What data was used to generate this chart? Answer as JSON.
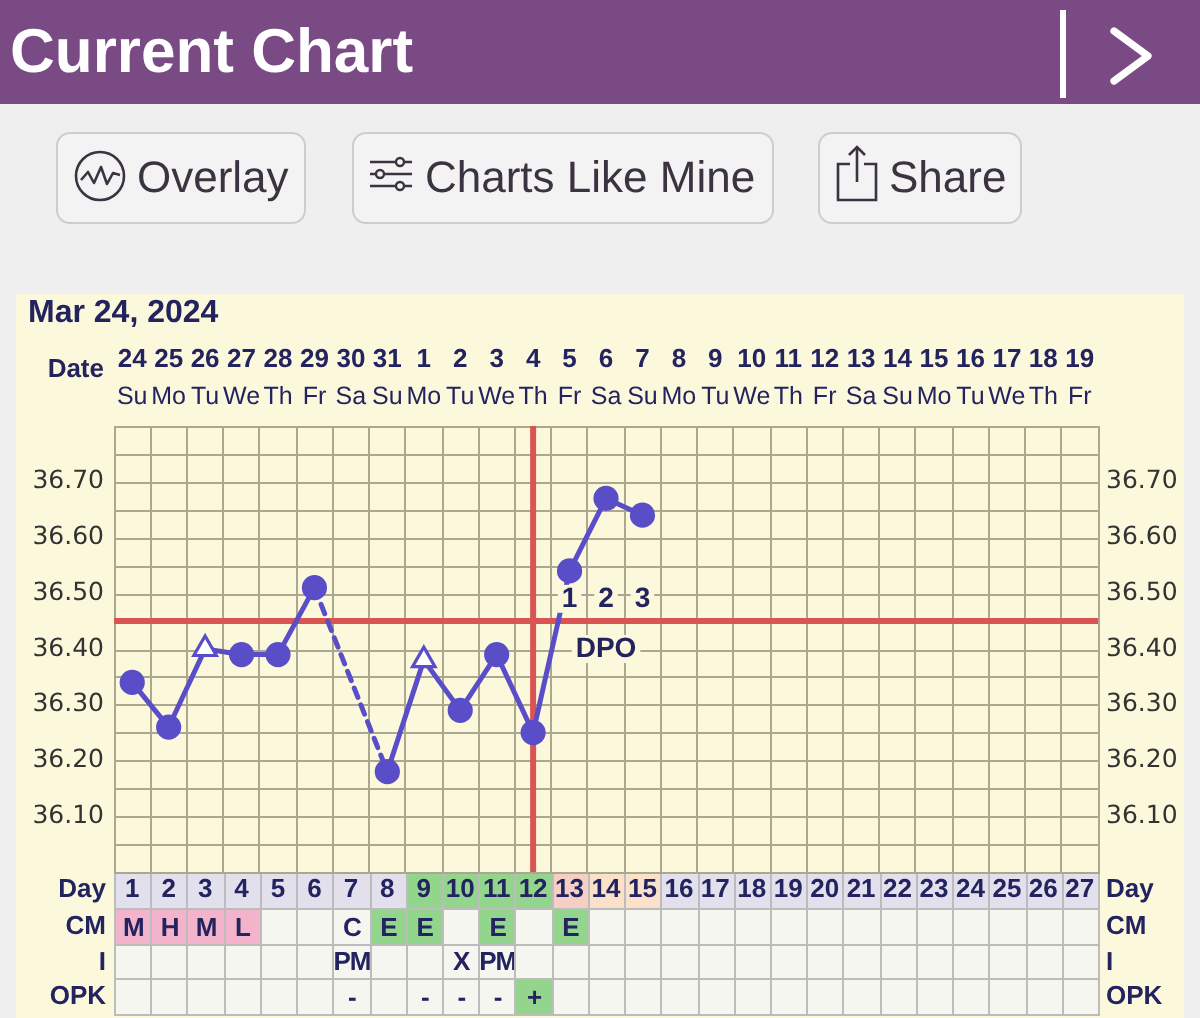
{
  "chart_data": [
    {
      "type": "line",
      "title": "Current Chart",
      "subtitle": "Mar 24, 2024",
      "xlabel": "Date",
      "x2label": "Day",
      "categories": [
        "24\nSu",
        "25\nMo",
        "26\nTu",
        "27\nWe",
        "28\nTh",
        "29\nFr",
        "30\nSa",
        "31\nSu",
        "1\nMo",
        "2\nTu",
        "3\nWe",
        "4\nTh",
        "5\nFr",
        "6\nSa",
        "7\nSu",
        "8\nMo",
        "9\nTu",
        "10\nWe",
        "11\nTh",
        "12\nFr",
        "13\nSa",
        "14\nSu",
        "15\nMo",
        "16\nTu",
        "17\nWe",
        "18\nTh",
        "19\nFr"
      ],
      "x2lim": [
        0.5,
        27.5
      ],
      "x2ticks": [
        1,
        2,
        3,
        4,
        5,
        6,
        7,
        8,
        9,
        10,
        11,
        12,
        13,
        14,
        15,
        16,
        17,
        18,
        19,
        20,
        21,
        22,
        23,
        24,
        25,
        26,
        27
      ],
      "series": [
        {
          "type": "line",
          "color": "#5a4ec8",
          "values": [
            36.34,
            36.26,
            36.4,
            36.39,
            36.39,
            36.51,
            null,
            36.18,
            36.38,
            36.29,
            36.39,
            36.25,
            36.54,
            36.67,
            36.64,
            null,
            null,
            null,
            null,
            null,
            null,
            null,
            null,
            null,
            null,
            null,
            null
          ]
        },
        {
          "type": "scatter",
          "color": "#5a4ec8",
          "marker": "circle",
          "values": [
            36.34,
            36.26,
            null,
            36.39,
            36.39,
            36.51,
            null,
            36.18,
            null,
            36.29,
            36.39,
            36.25,
            36.54,
            36.67,
            36.64,
            null,
            null,
            null,
            null,
            null,
            null,
            null,
            null,
            null,
            null,
            null,
            null
          ]
        },
        {
          "type": "scatter",
          "color": "#5a4ec8",
          "marker": "triangle",
          "values": [
            null,
            null,
            36.4,
            null,
            null,
            null,
            null,
            null,
            36.38,
            null,
            null,
            null,
            null,
            null,
            null,
            null,
            null,
            null,
            null,
            null,
            null,
            null,
            null,
            null,
            null,
            null,
            null
          ]
        }
      ],
      "ylim": [
        36.0,
        36.8
      ],
      "yticks": [
        {
          "value": 36.05,
          "label": null
        },
        {
          "value": 36.1,
          "label": "36.10"
        },
        {
          "value": 36.15,
          "label": null
        },
        {
          "value": 36.2,
          "label": "36.20"
        },
        {
          "value": 36.25,
          "label": null
        },
        {
          "value": 36.3,
          "label": "36.30"
        },
        {
          "value": 36.35,
          "label": null
        },
        {
          "value": 36.4,
          "label": "36.40"
        },
        {
          "value": 36.5,
          "label": "36.50"
        },
        {
          "value": 36.55,
          "label": null
        },
        {
          "value": 36.6,
          "label": "36.60"
        },
        {
          "value": 36.65,
          "label": null
        },
        {
          "value": 36.7,
          "label": "36.70"
        },
        {
          "value": 36.75,
          "label": null
        }
      ],
      "y2lim": [
        36.0,
        36.8
      ],
      "y2ticks": [
        {
          "value": 36.05,
          "label": null
        },
        {
          "value": 36.1,
          "label": "36.10"
        },
        {
          "value": 36.15,
          "label": null
        },
        {
          "value": 36.2,
          "label": "36.20"
        },
        {
          "value": 36.25,
          "label": null
        },
        {
          "value": 36.3,
          "label": "36.30"
        },
        {
          "value": 36.35,
          "label": null
        },
        {
          "value": 36.4,
          "label": "36.40"
        },
        {
          "value": 36.5,
          "label": "36.50"
        },
        {
          "value": 36.55,
          "label": null
        },
        {
          "value": 36.6,
          "label": "36.60"
        },
        {
          "value": 36.65,
          "label": null
        },
        {
          "value": 36.7,
          "label": "36.70"
        },
        {
          "value": 36.75,
          "label": null
        }
      ],
      "grid": true,
      "line_style": "solid",
      "ref_lines": [
        {
          "axis": "y",
          "value": 36.45,
          "color": "#d95452"
        },
        {
          "axis": "x",
          "value": "4\nTh",
          "color": "#d95452"
        }
      ],
      "annotations": [
        "Overlay",
        "Charts Like Mine",
        "Share",
        {
          "text": "1",
          "x": "5\nFr",
          "y": 36.49
        },
        {
          "text": "2",
          "x": "6\nSa",
          "y": 36.49
        },
        {
          "text": "3",
          "x": "7\nSu",
          "y": 36.49
        },
        {
          "text": "DPO",
          "x": "6\nSa",
          "y": 36.4
        }
      ]
    },
    {
      "type": "other",
      "categories": [
        null,
        null,
        null,
        null,
        null,
        null,
        null,
        null,
        null,
        null,
        null,
        null,
        null,
        null,
        null,
        null,
        null,
        null,
        null,
        null,
        null,
        null,
        null,
        null,
        null,
        null,
        null
      ],
      "y_categories": [
        null,
        "CM",
        "I",
        "OPK"
      ],
      "y2_categories": [
        null,
        "CM",
        "I",
        "OPK"
      ],
      "cell_labels": [
        [
          null,
          null,
          null,
          null,
          null,
          null,
          null,
          null,
          null,
          null,
          null,
          null,
          null,
          null,
          null,
          null,
          null,
          null,
          null,
          null,
          null,
          null,
          null,
          null,
          null,
          null,
          null
        ],
        [
          "M",
          "H",
          "M",
          "L",
          null,
          null,
          "C",
          "E",
          "E",
          null,
          "E",
          null,
          "E",
          null,
          null,
          null,
          null,
          null,
          null,
          null,
          null,
          null,
          null,
          null,
          null,
          null,
          null
        ],
        [
          null,
          null,
          null,
          null,
          null,
          null,
          "PM",
          null,
          null,
          "X",
          "PM",
          null,
          null,
          null,
          null,
          null,
          null,
          null,
          null,
          null,
          null,
          null,
          null,
          null,
          null,
          null,
          null
        ],
        [
          null,
          null,
          null,
          null,
          null,
          null,
          "-",
          null,
          "-",
          "-",
          "-",
          "+",
          null,
          null,
          null,
          null,
          null,
          null,
          null,
          null,
          null,
          null,
          null,
          null,
          null,
          null,
          null
        ]
      ],
      "colors": [
        [
          "#e2e0ec",
          "#e2e0ec",
          "#e2e0ec",
          "#e2e0ec",
          "#e2e0ec",
          "#e2e0ec",
          "#e2e0ec",
          "#e2e0ec",
          "#93d58c",
          "#93d58c",
          "#93d58c",
          "#93d58c",
          "#f6cfc4",
          "#fbe1c9",
          "#fbe1c9",
          "#e2e0ec",
          "#e2e0ec",
          "#e2e0ec",
          "#e2e0ec",
          "#e2e0ec",
          "#e2e0ec",
          "#e2e0ec",
          "#e2e0ec",
          "#e2e0ec",
          "#e2e0ec",
          "#e2e0ec",
          "#e2e0ec"
        ],
        [
          "#f3b3cb",
          "#f3b3cb",
          "#f3b3cb",
          "#f3b3cb",
          "#f6f6f0",
          "#f6f6f0",
          "#f6f6f0",
          "#93d58c",
          "#93d58c",
          "#f6f6f0",
          "#93d58c",
          "#f6f6f0",
          "#93d58c",
          "#f6f6f0",
          "#f6f6f0",
          "#f6f6f0",
          "#f6f6f0",
          "#f6f6f0",
          "#f6f6f0",
          "#f6f6f0",
          "#f6f6f0",
          "#f6f6f0",
          "#f6f6f0",
          "#f6f6f0",
          "#f6f6f0",
          "#f6f6f0",
          "#f6f6f0"
        ],
        [
          "#f6f6f0",
          "#f6f6f0",
          "#f6f6f0",
          "#f6f6f0",
          "#f6f6f0",
          "#f6f6f0",
          "#f6f6f0",
          "#f6f6f0",
          "#f6f6f0",
          "#f6f6f0",
          "#f6f6f0",
          "#f6f6f0",
          "#f6f6f0",
          "#f6f6f0",
          "#f6f6f0",
          "#f6f6f0",
          "#f6f6f0",
          "#f6f6f0",
          "#f6f6f0",
          "#f6f6f0",
          "#f6f6f0",
          "#f6f6f0",
          "#f6f6f0",
          "#f6f6f0",
          "#f6f6f0",
          "#f6f6f0",
          "#f6f6f0"
        ],
        [
          "#f6f6f0",
          "#f6f6f0",
          "#f6f6f0",
          "#f6f6f0",
          "#f6f6f0",
          "#f6f6f0",
          "#f6f6f0",
          "#f6f6f0",
          "#f6f6f0",
          "#f6f6f0",
          "#f6f6f0",
          "#93d58c",
          "#f6f6f0",
          "#f6f6f0",
          "#f6f6f0",
          "#f6f6f0",
          "#f6f6f0",
          "#f6f6f0",
          "#f6f6f0",
          "#f6f6f0",
          "#f6f6f0",
          "#f6f6f0",
          "#f6f6f0",
          "#f6f6f0",
          "#f6f6f0",
          "#f6f6f0",
          "#f6f6f0"
        ]
      ]
    }
  ]
}
